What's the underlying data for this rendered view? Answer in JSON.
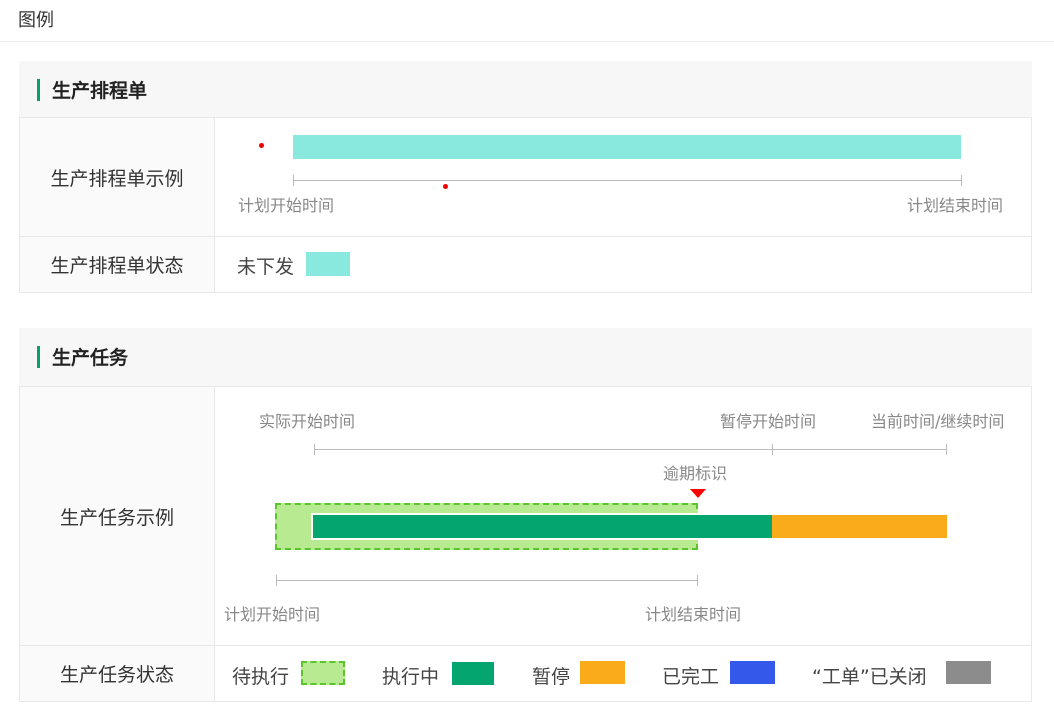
{
  "page_title": "图例",
  "schedule": {
    "section_title": "生产排程单",
    "example_label": "生产排程单示例",
    "plan_start": "计划开始时间",
    "plan_end": "计划结束时间",
    "status_label": "生产排程单状态",
    "statuses": [
      {
        "label": "未下发",
        "color": "#89e9de"
      }
    ]
  },
  "task": {
    "section_title": "生产任务",
    "example_label": "生产任务示例",
    "actual_start": "实际开始时间",
    "pause_start": "暂停开始时间",
    "current_time": "当前时间/继续时间",
    "overdue_mark": "逾期标识",
    "plan_start": "计划开始时间",
    "plan_end": "计划结束时间",
    "status_label": "生产任务状态",
    "statuses": [
      {
        "label": "待执行",
        "color": "#b8eb91"
      },
      {
        "label": "执行中",
        "color": "#04a56f"
      },
      {
        "label": "暂停",
        "color": "#faab19"
      },
      {
        "label": "已完工",
        "color": "#3358ea"
      },
      {
        "label": "“工单”已关闭",
        "color": "#8c8c8c"
      }
    ]
  }
}
